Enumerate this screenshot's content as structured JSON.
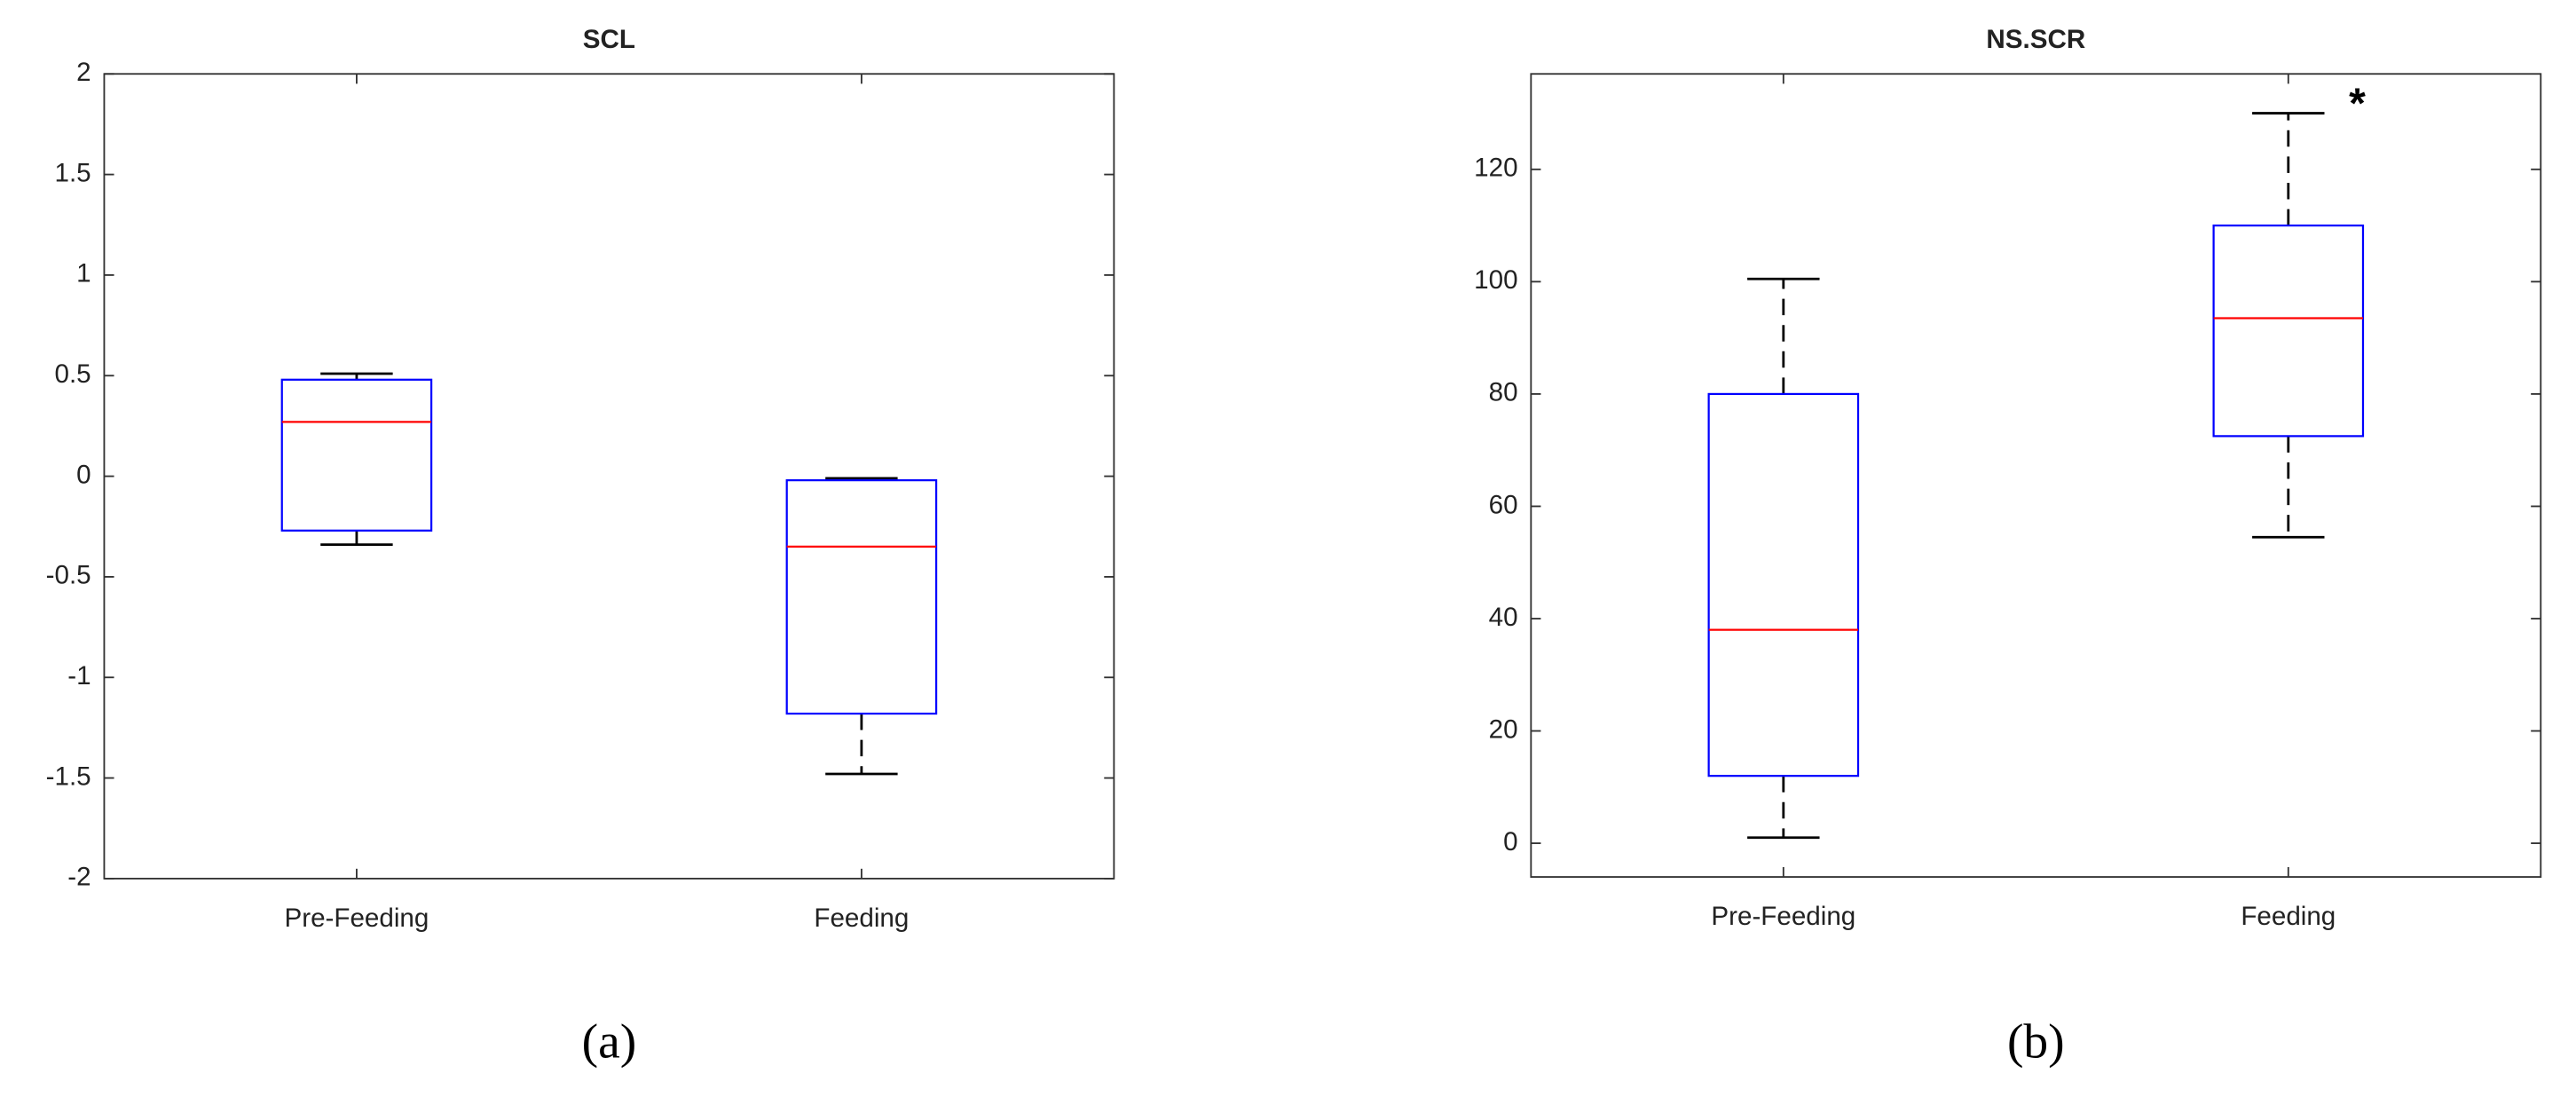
{
  "chart_data": [
    {
      "type": "box",
      "title": "SCL",
      "caption": "(a)",
      "categories": [
        "Pre-Feeding",
        "Feeding"
      ],
      "boxes": [
        {
          "min": -0.34,
          "q1": -0.27,
          "median": 0.27,
          "q3": 0.48,
          "max": 0.51
        },
        {
          "min": -1.48,
          "q1": -1.18,
          "median": -0.35,
          "q3": -0.02,
          "max": -0.01
        }
      ],
      "box_color": "#0000ff",
      "median_color": "#ff0000",
      "whisker_color": "#000000",
      "ylim": [
        -2,
        2
      ],
      "yticks": [
        -2,
        -1.5,
        -1,
        -0.5,
        0,
        0.5,
        1,
        1.5,
        2
      ],
      "grid": false
    },
    {
      "type": "box",
      "title": "NS.SCR",
      "caption": "(b)",
      "categories": [
        "Pre-Feeding",
        "Feeding"
      ],
      "boxes": [
        {
          "min": 1,
          "q1": 12,
          "median": 38,
          "q3": 80,
          "max": 100.5
        },
        {
          "min": 54.5,
          "q1": 72.5,
          "median": 93.5,
          "q3": 110,
          "max": 130
        }
      ],
      "box_color": "#0000ff",
      "median_color": "#ff0000",
      "whisker_color": "#000000",
      "annotations": [
        {
          "text": "*",
          "category": "Feeding"
        }
      ],
      "ylim": [
        -6,
        137
      ],
      "yticks": [
        0,
        20,
        40,
        60,
        80,
        100,
        120
      ],
      "grid": false
    }
  ]
}
